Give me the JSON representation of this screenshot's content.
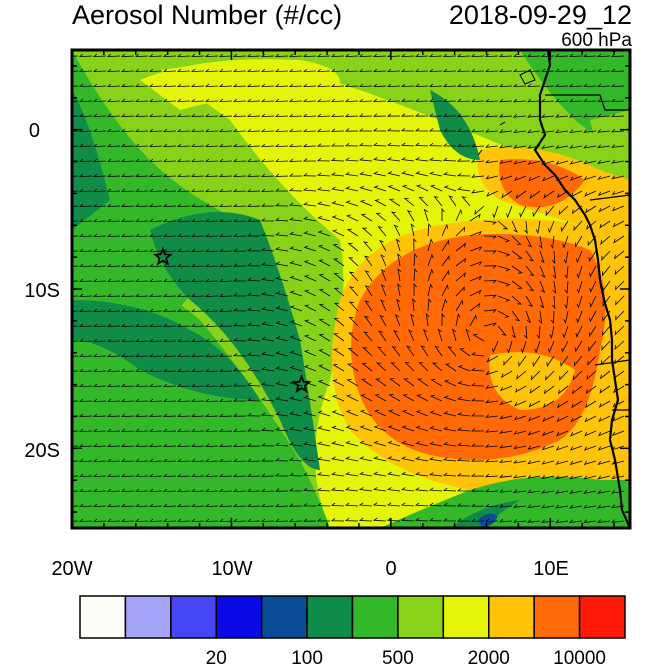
{
  "header": {
    "title": "Aerosol Number (#/cc)",
    "datetime": "2018-09-29_12",
    "level": "600 hPa"
  },
  "axes": {
    "lon_labels": [
      "20W",
      "10W",
      "0",
      "10E"
    ],
    "lat_labels": [
      "0",
      "10S",
      "20S"
    ]
  },
  "markers": [
    {
      "name": "star-marker",
      "lon": -14.3,
      "lat": -8.0
    },
    {
      "name": "star-marker",
      "lon": -5.6,
      "lat": -16.0
    }
  ],
  "colorbar": {
    "colors": [
      "#fdfdf8",
      "#a4a4f8",
      "#4646f6",
      "#0a0ae6",
      "#0a4c96",
      "#0f8c48",
      "#33b82a",
      "#88d31a",
      "#e4f50a",
      "#ffc307",
      "#ff6a07",
      "#ff1a0a"
    ],
    "labels": [
      {
        "text": "20",
        "after_index": 2
      },
      {
        "text": "100",
        "after_index": 4
      },
      {
        "text": "500",
        "after_index": 6
      },
      {
        "text": "2000",
        "after_index": 8
      },
      {
        "text": "10000",
        "after_index": 10
      }
    ]
  }
}
